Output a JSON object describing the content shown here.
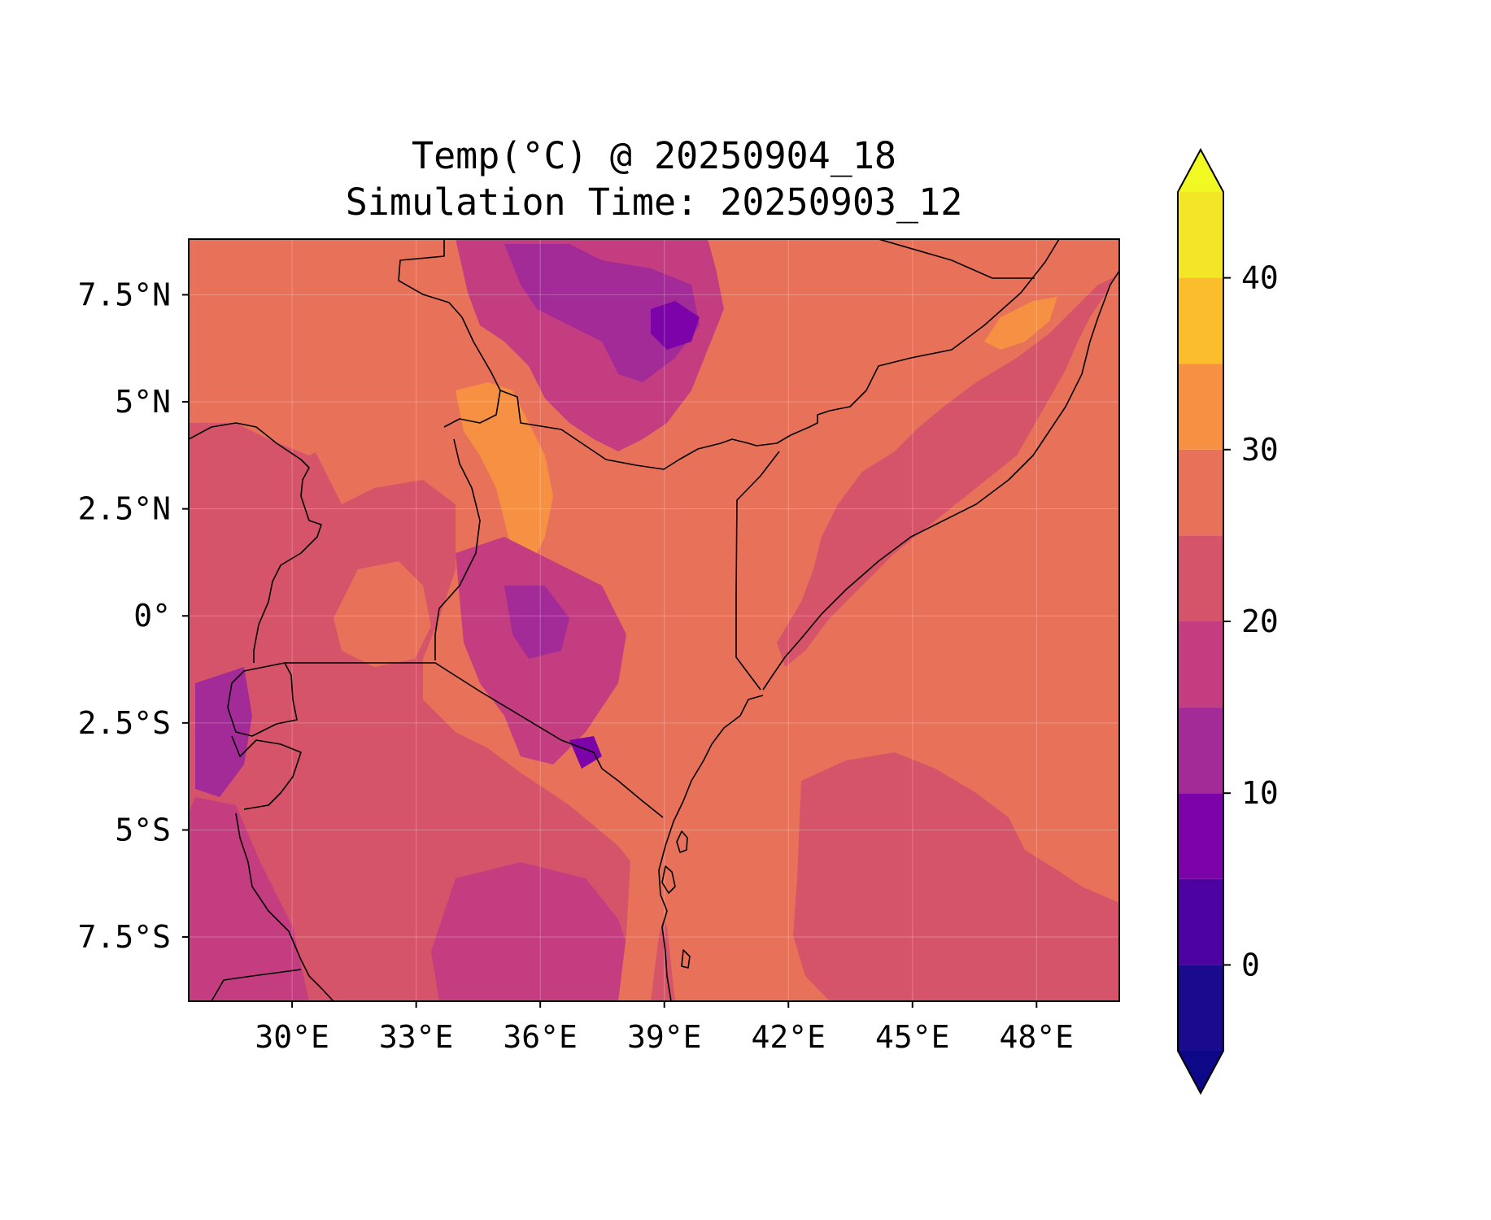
{
  "title": {
    "line1": "Temp(°C) @ 20250904_18",
    "line2": "Simulation Time: 20250903_12"
  },
  "map": {
    "type": "filled-contour map",
    "variable": "Temp(°C)",
    "lon_range": [
      27.5,
      50.0
    ],
    "lat_range": [
      -9.0,
      8.8
    ],
    "grid": true,
    "x_ticks": [
      {
        "lon": 30,
        "label": "30°E"
      },
      {
        "lon": 33,
        "label": "33°E"
      },
      {
        "lon": 36,
        "label": "36°E"
      },
      {
        "lon": 39,
        "label": "39°E"
      },
      {
        "lon": 42,
        "label": "42°E"
      },
      {
        "lon": 45,
        "label": "45°E"
      },
      {
        "lon": 48,
        "label": "48°E"
      }
    ],
    "y_ticks": [
      {
        "lat": 7.5,
        "label": "7.5°N"
      },
      {
        "lat": 5,
        "label": "5°N"
      },
      {
        "lat": 2.5,
        "label": "2.5°N"
      },
      {
        "lat": 0,
        "label": "0°"
      },
      {
        "lat": -2.5,
        "label": "2.5°S"
      },
      {
        "lat": -5,
        "label": "5°S"
      },
      {
        "lat": -7.5,
        "label": "7.5°S"
      }
    ]
  },
  "colorbar": {
    "colormap": "plasma",
    "extend": "both",
    "levels": [
      -5,
      0,
      5,
      10,
      15,
      20,
      25,
      30,
      35,
      40,
      45
    ],
    "colors": [
      "#1a0a8c",
      "#4d02a2",
      "#7b03a8",
      "#a22b97",
      "#c33d80",
      "#d6546a",
      "#e8715a",
      "#f69143",
      "#fbbd2b",
      "#f2e626"
    ],
    "under_color": "#0d0887",
    "over_color": "#f0f921",
    "ticks": [
      {
        "value": 0,
        "label": "0"
      },
      {
        "value": 10,
        "label": "10"
      },
      {
        "value": 20,
        "label": "20"
      },
      {
        "value": 30,
        "label": "30"
      },
      {
        "value": 40,
        "label": "40"
      }
    ]
  },
  "colors": {
    "sea_warm": "#e8715a",
    "sea_cool": "#d6546a",
    "land_warm": "#e8715a",
    "highland": "#c33d80",
    "high_peak": "#a22b97",
    "hot_spot": "#f69143"
  }
}
